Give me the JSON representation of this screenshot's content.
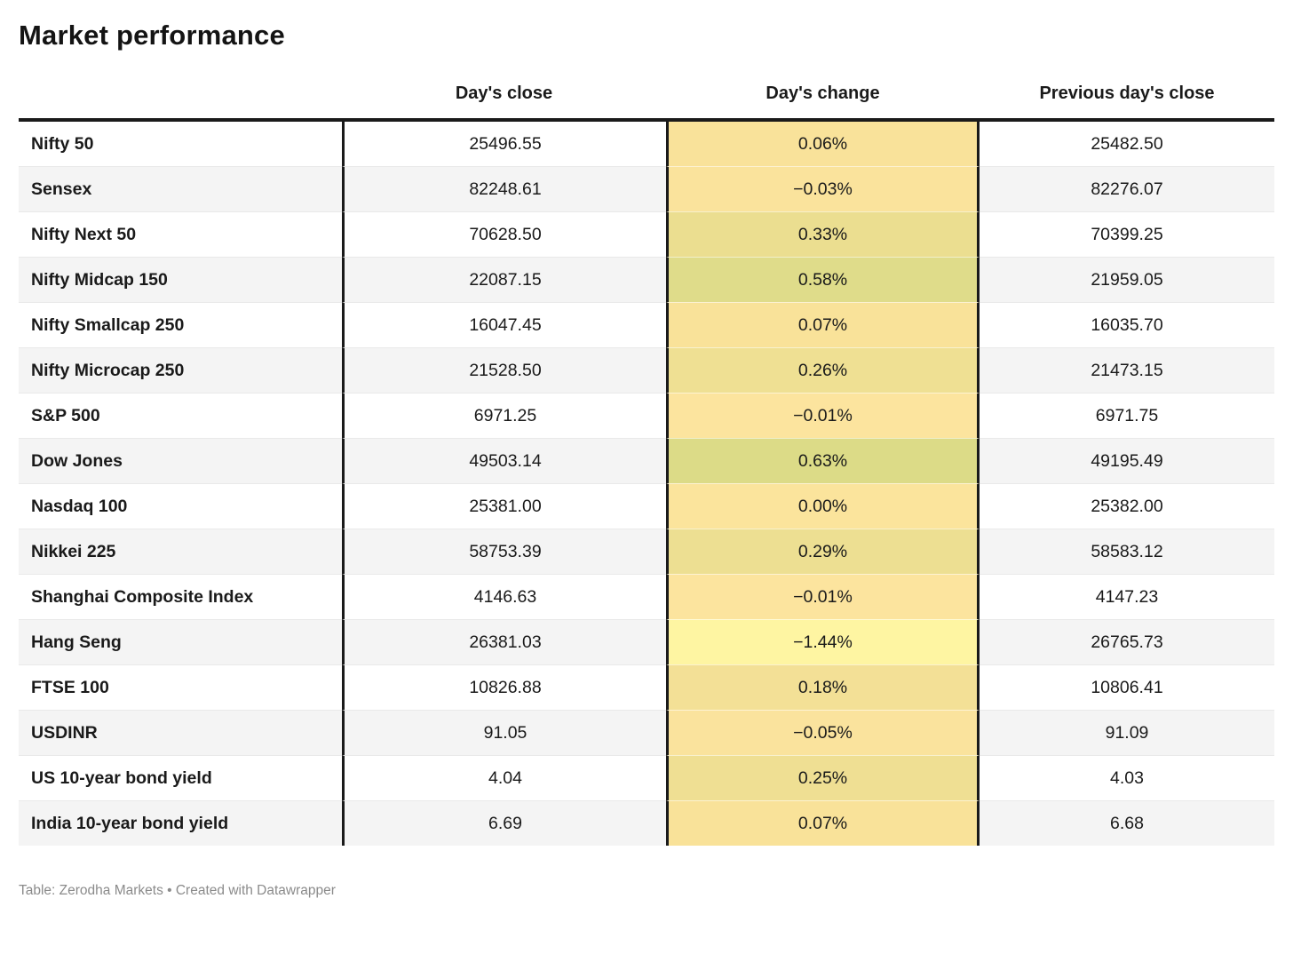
{
  "title": "Market performance",
  "columns": {
    "label": "",
    "close": "Day's close",
    "change": "Day's change",
    "prev": "Previous day's close"
  },
  "footer": "Table: Zerodha Markets • Created with Datawrapper",
  "colors": {
    "border_strong": "#1a1a1a",
    "row_alt": "#f4f4f4",
    "footer_text": "#8b8b8b"
  },
  "chart_data": {
    "type": "table",
    "title": "Market performance",
    "columns": [
      "",
      "Day's close",
      "Day's change",
      "Previous day's close"
    ],
    "legend_note": "Day's change column shaded from light yellow (negative) to yellow-green (positive)",
    "rows": [
      {
        "name": "Nifty 50",
        "close": "25496.55",
        "change": "0.06%",
        "change_color": "#f9e29a",
        "prev": "25482.50"
      },
      {
        "name": "Sensex",
        "close": "82248.61",
        "change": "−0.03%",
        "change_color": "#fae39c",
        "prev": "82276.07"
      },
      {
        "name": "Nifty Next 50",
        "close": "70628.50",
        "change": "0.33%",
        "change_color": "#ebde90",
        "prev": "70399.25"
      },
      {
        "name": "Nifty Midcap 150",
        "close": "22087.15",
        "change": "0.58%",
        "change_color": "#dfdc8a",
        "prev": "21959.05"
      },
      {
        "name": "Nifty Smallcap 250",
        "close": "16047.45",
        "change": "0.07%",
        "change_color": "#f9e299",
        "prev": "16035.70"
      },
      {
        "name": "Nifty Microcap 250",
        "close": "21528.50",
        "change": "0.26%",
        "change_color": "#efe093",
        "prev": "21473.15"
      },
      {
        "name": "S&P 500",
        "close": "6971.25",
        "change": "−0.01%",
        "change_color": "#fce49e",
        "prev": "6971.75"
      },
      {
        "name": "Dow Jones",
        "close": "49503.14",
        "change": "0.63%",
        "change_color": "#dcdb87",
        "prev": "49195.49"
      },
      {
        "name": "Nasdaq 100",
        "close": "25381.00",
        "change": "0.00%",
        "change_color": "#fbe49c",
        "prev": "25382.00"
      },
      {
        "name": "Nikkei 225",
        "close": "58753.39",
        "change": "0.29%",
        "change_color": "#eddf92",
        "prev": "58583.12"
      },
      {
        "name": "Shanghai Composite Index",
        "close": "4146.63",
        "change": "−0.01%",
        "change_color": "#fce49e",
        "prev": "4147.23"
      },
      {
        "name": "Hang Seng",
        "close": "26381.03",
        "change": "−1.44%",
        "change_color": "#fef5a2",
        "prev": "26765.73"
      },
      {
        "name": "FTSE 100",
        "close": "10826.88",
        "change": "0.18%",
        "change_color": "#f3e096",
        "prev": "10806.41"
      },
      {
        "name": "USDINR",
        "close": "91.05",
        "change": "−0.05%",
        "change_color": "#fae39d",
        "prev": "91.09"
      },
      {
        "name": "US 10-year bond yield",
        "close": "4.04",
        "change": "0.25%",
        "change_color": "#efdf93",
        "prev": "4.03"
      },
      {
        "name": "India 10-year bond yield",
        "close": "6.69",
        "change": "0.07%",
        "change_color": "#f9e299",
        "prev": "6.68"
      }
    ]
  }
}
